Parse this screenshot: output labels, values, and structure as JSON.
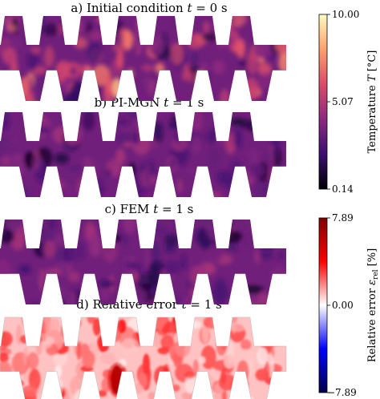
{
  "panels": [
    {
      "title": "a) Initial condition",
      "time_var": "t",
      "time_eq": " = 0 s",
      "field": "initial"
    },
    {
      "title": "b) PI-MGN",
      "time_var": "t",
      "time_eq": " = 1 s",
      "field": "pimgn"
    },
    {
      "title": "c) FEM",
      "time_var": "t",
      "time_eq": " = 1 s",
      "field": "fem"
    },
    {
      "title": "d) Relative error",
      "time_var": "t",
      "time_eq": " = 1 s",
      "field": "error"
    }
  ],
  "colorbars": {
    "temperature": {
      "label_prefix": "Temperature ",
      "label_var": "T",
      "label_unit": " [°C]",
      "ticks": [
        "10.00",
        "5.07",
        "0.14"
      ],
      "tick_values": [
        10.0,
        5.07,
        0.14
      ],
      "colormap": "magma",
      "colors": [
        "#000004",
        "#3b0f70",
        "#8c2981",
        "#de4968",
        "#fe9f6d",
        "#fcfdbf"
      ]
    },
    "error": {
      "label_prefix": "Relative error ",
      "label_var": "ε",
      "label_sub": "rel",
      "label_unit": " [%]",
      "ticks": [
        "7.89",
        "0.00",
        "−7.89"
      ],
      "tick_values": [
        7.89,
        0.0,
        -7.89
      ],
      "colormap": "seismic",
      "colors": [
        "#00004c",
        "#0000ff",
        "#ffffff",
        "#ff0000",
        "#800000"
      ]
    }
  }
}
